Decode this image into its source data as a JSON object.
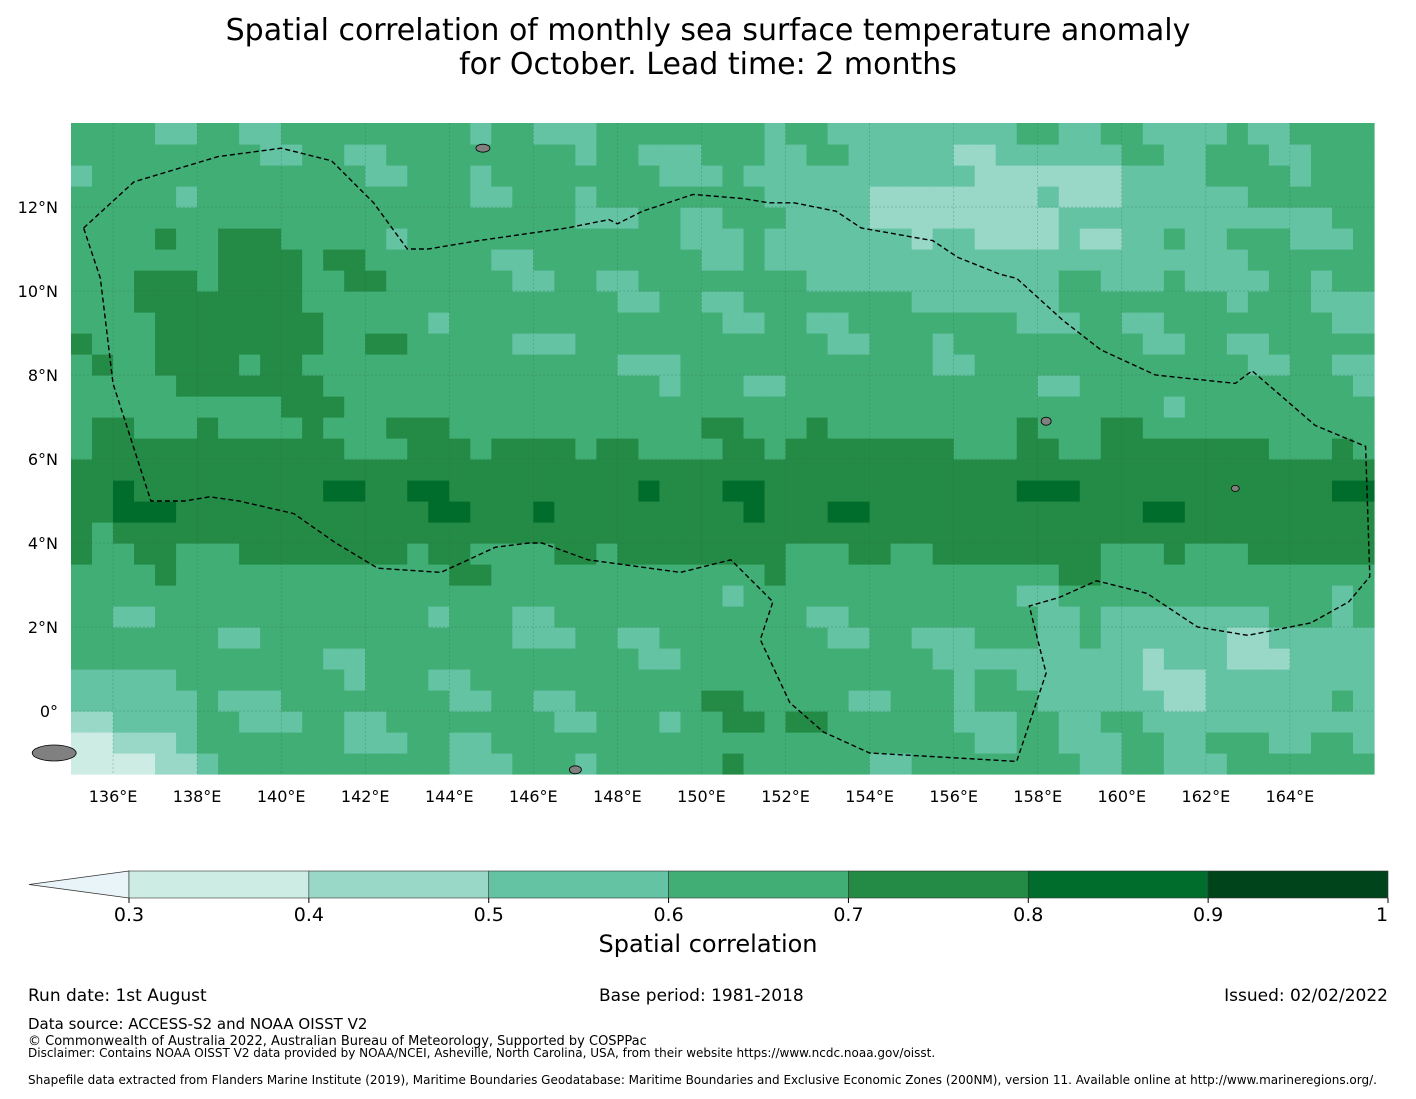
{
  "title_line1": "Spatial correlation of monthly sea surface temperature anomaly",
  "title_line2": "for October. Lead time: 2 months",
  "map": {
    "lon_range": [
      135,
      166
    ],
    "lat_range": [
      -1.5,
      14
    ],
    "lon_ticks": [
      "136°E",
      "138°E",
      "140°E",
      "142°E",
      "144°E",
      "146°E",
      "148°E",
      "150°E",
      "152°E",
      "154°E",
      "156°E",
      "158°E",
      "160°E",
      "162°E",
      "164°E"
    ],
    "lat_ticks": [
      "12°N",
      "10°N",
      "8°N",
      "6°N",
      "4°N",
      "2°N",
      "0°"
    ],
    "grid": true,
    "eez_boundary": "dashed black"
  },
  "colorbar": {
    "label": "Spatial correlation",
    "ticks": [
      "0.3",
      "0.4",
      "0.5",
      "0.6",
      "0.7",
      "0.8",
      "0.9",
      "1"
    ],
    "colors": [
      "#ccece4",
      "#99d7c7",
      "#63c3a3",
      "#41ae76",
      "#238b45",
      "#006d2c",
      "#00441b"
    ],
    "under_color": "#e8f4f8",
    "extend": "min"
  },
  "chart_data": {
    "type": "heatmap",
    "variable": "Spatial correlation",
    "colorbar_range": [
      0.3,
      1.0
    ],
    "colorbar_bins": [
      0.3,
      0.4,
      0.5,
      0.6,
      0.7,
      0.8,
      0.9,
      1.0
    ]
  },
  "footer": {
    "run_date": "Run date: 1st August",
    "base_period": "Base period: 1981-2018",
    "issued": "Issued: 02/02/2022",
    "data_source": "Data source: ACCESS-S2 and NOAA OISST V2",
    "copyright": "© Commonwealth of Australia 2022, Australian Bureau of Meteorology, Supported by COSPPac",
    "disclaimer": "Disclaimer: Contains NOAA OISST V2 data provided by NOAA/NCEI, Asheville, North Carolina, USA, from their website https://www.ncdc.noaa.gov/oisst.",
    "shapefile": "Shapefile data extracted from Flanders Marine Institute (2019), Maritime Boundaries Geodatabase: Maritime Boundaries and Exclusive Economic Zones (200NM), version 11. Available online at http://www.marineregions.org/."
  }
}
